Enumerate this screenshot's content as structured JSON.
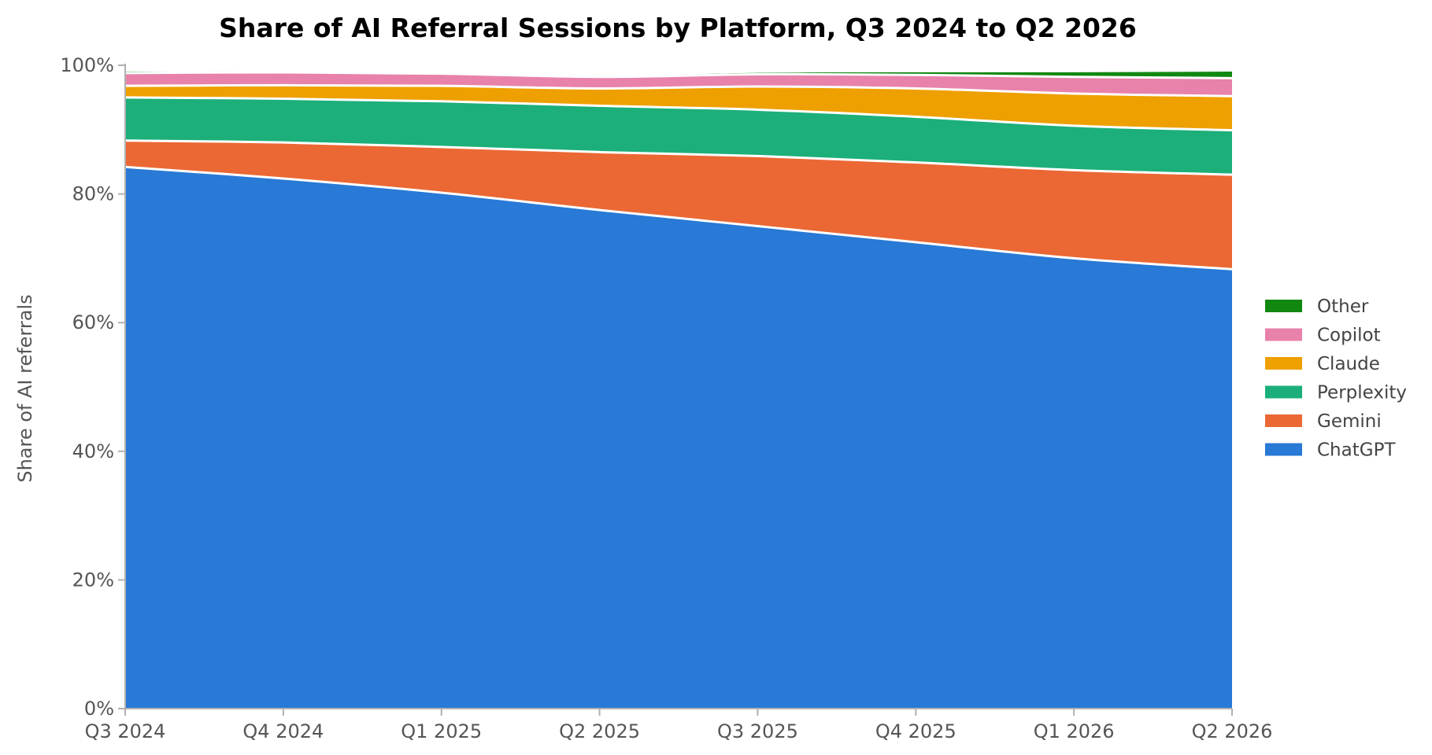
{
  "chart_data": {
    "type": "area",
    "stacked": true,
    "normalized": true,
    "title": "Share of AI Referral Sessions by Platform, Q3 2024 to Q2 2026",
    "xlabel": "",
    "ylabel": "Share of AI referrals",
    "categories": [
      "Q3 2024",
      "Q4 2024",
      "Q1 2025",
      "Q2 2025",
      "Q3 2025",
      "Q4 2025",
      "Q1 2026",
      "Q2 2026"
    ],
    "ylim": [
      0,
      100
    ],
    "y_ticks": [
      "0%",
      "20%",
      "40%",
      "60%",
      "80%",
      "100%"
    ],
    "y_unit": "%",
    "grid": false,
    "legend_position": "right",
    "series": [
      {
        "name": "ChatGPT",
        "color": "#2979d6",
        "values": [
          84.2,
          82.4,
          80.2,
          77.5,
          75.0,
          72.5,
          70.0,
          68.3
        ]
      },
      {
        "name": "Gemini",
        "color": "#eb6834",
        "values": [
          4.1,
          5.6,
          7.1,
          9.0,
          10.9,
          12.4,
          13.7,
          14.7
        ]
      },
      {
        "name": "Perplexity",
        "color": "#1caf7a",
        "values": [
          6.7,
          6.8,
          7.1,
          7.2,
          7.2,
          7.1,
          6.9,
          6.9
        ]
      },
      {
        "name": "Claude",
        "color": "#eea000",
        "values": [
          1.8,
          2.1,
          2.4,
          2.7,
          3.6,
          4.4,
          5.0,
          5.3
        ]
      },
      {
        "name": "Copilot",
        "color": "#e882aa",
        "values": [
          2.0,
          2.0,
          1.9,
          1.8,
          1.9,
          2.1,
          2.6,
          2.8
        ]
      },
      {
        "name": "Other",
        "color": "#118811",
        "values": [
          0.4,
          0.3,
          0.3,
          0.3,
          0.4,
          0.6,
          0.9,
          1.2
        ]
      }
    ],
    "legend_order": [
      "Other",
      "Copilot",
      "Claude",
      "Perplexity",
      "Gemini",
      "ChatGPT"
    ],
    "colors": {
      "axis": "#b0b0b0",
      "tick_text": "#555555",
      "title_text": "#000000",
      "separator": "#ffffff"
    }
  }
}
